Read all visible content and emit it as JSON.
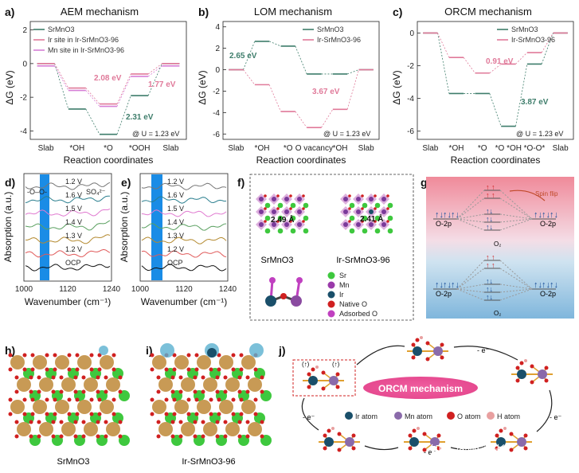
{
  "panels": {
    "a": {
      "label": "a)",
      "title": "AEM mechanism"
    },
    "b": {
      "label": "b)",
      "title": "LOM mechanism"
    },
    "c": {
      "label": "c)",
      "title": "ORCM mechanism"
    },
    "d": {
      "label": "d)"
    },
    "e": {
      "label": "e)"
    },
    "f": {
      "label": "f)"
    },
    "g": {
      "label": "g)"
    },
    "h": {
      "label": "h)"
    },
    "i": {
      "label": "i)"
    },
    "j": {
      "label": "j)"
    }
  },
  "colors": {
    "srmno3": "#3e7d6b",
    "ir_site": "#e07a9a",
    "mn_site": "#d67fd6",
    "band": "#1a8ce6",
    "orcm_bg": "#e43a8a",
    "ir_atom": "#1a4f6a",
    "mn_atom": "#8a6aaa",
    "o_atom": "#d02020",
    "h_atom": "#e8a0a0"
  },
  "chart_data": [
    {
      "type": "line",
      "title": "AEM mechanism",
      "xlabel": "Reaction coordinates",
      "ylabel": "ΔG (eV)",
      "categories": [
        "Slab",
        "*OH",
        "*O",
        "*OOH",
        "Slab"
      ],
      "ylim": [
        -4.5,
        2.5
      ],
      "yticks": [
        2,
        0,
        -2,
        -4
      ],
      "series": [
        {
          "name": "SrMnO3",
          "color": "#3e7d6b",
          "values": [
            0,
            -2.7,
            -4.2,
            -1.9,
            0
          ]
        },
        {
          "name": "Ir site in Ir-SrMnO3-96",
          "color": "#e07a9a",
          "values": [
            0,
            -1.45,
            -2.4,
            -0.62,
            0
          ]
        },
        {
          "name": "Mn site in Ir-SrMnO3-96",
          "color": "#d67fd6",
          "values": [
            0,
            -1.45,
            -2.4,
            -0.62,
            0
          ]
        }
      ],
      "annotations": [
        "2.08 eV",
        "1.77 eV",
        "2.31 eV",
        "@ U = 1.23 eV"
      ]
    },
    {
      "type": "line",
      "title": "LOM mechanism",
      "xlabel": "Reaction coordinates",
      "ylabel": "ΔG (eV)",
      "categories": [
        "Slab",
        "*OH",
        "*O",
        "O vacancy",
        "*OH",
        "Slab"
      ],
      "ylim": [
        -6.5,
        4.5
      ],
      "yticks": [
        4,
        2,
        0,
        -2,
        -4,
        -6
      ],
      "series": [
        {
          "name": "SrMnO3",
          "color": "#3e7d6b",
          "values": [
            0,
            2.65,
            2.2,
            -0.4,
            -0.4,
            0
          ]
        },
        {
          "name": "Ir-SrMnO3-96",
          "color": "#e07a9a",
          "values": [
            0,
            -1.4,
            -3.9,
            -5.4,
            -3.7,
            0
          ]
        }
      ],
      "annotations": [
        "2.65 eV",
        "3.67 eV",
        "@ U = 1.23 eV"
      ]
    },
    {
      "type": "line",
      "title": "ORCM mechanism",
      "xlabel": "Reaction coordinates",
      "ylabel": "ΔG (eV)",
      "categories": [
        "Slab",
        "*OH",
        "*O",
        "*O *OH",
        "*O-O*",
        "Slab"
      ],
      "ylim": [
        -6.5,
        0.7
      ],
      "yticks": [
        0,
        -2,
        -4,
        -6
      ],
      "series": [
        {
          "name": "SrMnO3",
          "color": "#3e7d6b",
          "values": [
            0,
            -3.7,
            -3.7,
            -5.7,
            -1.9,
            0
          ]
        },
        {
          "name": "Ir-SrMnO3-96",
          "color": "#e07a9a",
          "values": [
            0,
            -1.5,
            -2.45,
            -1.9,
            -1.2,
            0
          ]
        }
      ],
      "annotations": [
        "0.91 eV",
        "3.87 eV",
        "@ U = 1.23 eV"
      ]
    },
    {
      "type": "line",
      "xlabel": "Wavenumber (cm⁻¹)",
      "ylabel": "Absorption (a.u.)",
      "xlim": [
        1000,
        1240
      ],
      "xticks": [
        1000,
        1120,
        1240
      ],
      "series_labels": [
        "1.2 V",
        "1.6 V",
        "1.5 V",
        "1.4 V",
        "1.3 V",
        "1.2 V",
        "OCP"
      ],
      "annotations": [
        "-O–O-",
        "SO₄²⁻"
      ]
    },
    {
      "type": "line",
      "xlabel": "Wavenumber (cm⁻¹)",
      "ylabel": "Absorption (a.u.)",
      "xlim": [
        1000,
        1240
      ],
      "xticks": [
        1000,
        1120,
        1240
      ],
      "series_labels": [
        "1.2 V",
        "1.6 V",
        "1.5 V",
        "1.4 V",
        "1.3 V",
        "1.2 V",
        "OCP"
      ]
    }
  ],
  "f": {
    "dist1": "2.49 Å",
    "dist2": "2.41 Å",
    "name1": "SrMnO3",
    "name2": "Ir-SrMnO3-96",
    "legend": [
      "Sr",
      "Mn",
      "Ir",
      "Native O",
      "Adsorbed O"
    ]
  },
  "g": {
    "o2p": "O-2p",
    "spin_flip": "Spin flip",
    "o2": "O₂"
  },
  "h": {
    "caption": "SrMnO3"
  },
  "i": {
    "caption": "Ir-SrMnO3-96"
  },
  "j": {
    "title": "ORCM mechanism",
    "legend": [
      "Ir atom",
      "Mn atom",
      "O atom",
      "H atom"
    ],
    "electron": "- e⁻",
    "arrow_up": "(↑)"
  },
  "watermark": "知乎 @MS站长"
}
